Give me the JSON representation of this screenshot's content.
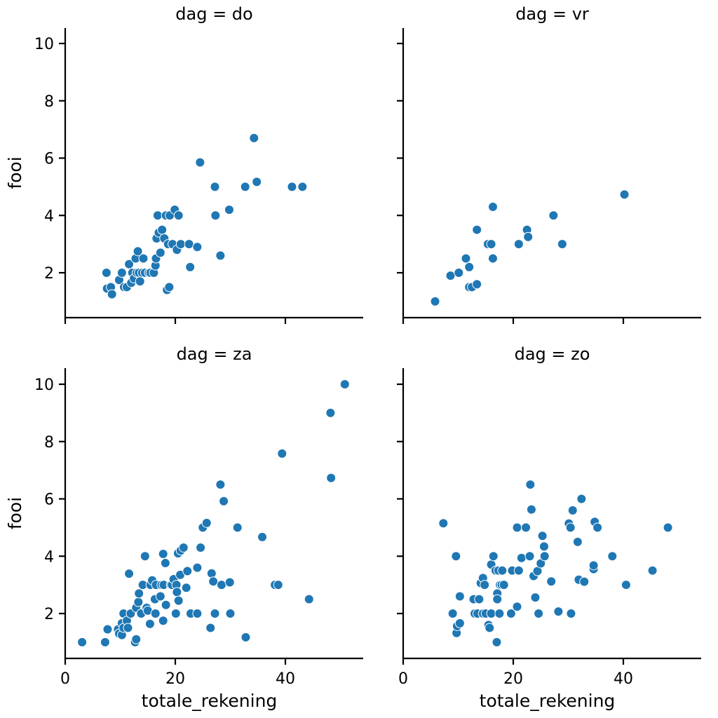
{
  "chart_data": {
    "type": "scatter",
    "facet_variable": "dag",
    "xlabel": "totale_rekening",
    "ylabel": "fooi",
    "xlim": [
      0,
      54
    ],
    "ylim": [
      0.4,
      10.6
    ],
    "xticks": [
      0,
      20,
      40
    ],
    "yticks": [
      2,
      4,
      6,
      8,
      10
    ],
    "point_color": "#1f77b4",
    "panels": [
      {
        "title": "dag = do",
        "points": [
          [
            7.5,
            2.0
          ],
          [
            7.6,
            1.45
          ],
          [
            8.3,
            1.5
          ],
          [
            8.5,
            1.25
          ],
          [
            9.8,
            1.75
          ],
          [
            10.3,
            2.0
          ],
          [
            10.7,
            1.5
          ],
          [
            11.2,
            1.5
          ],
          [
            11.6,
            2.3
          ],
          [
            12.0,
            1.65
          ],
          [
            12.2,
            2.0
          ],
          [
            12.5,
            1.8
          ],
          [
            12.8,
            2.5
          ],
          [
            13.0,
            2.0
          ],
          [
            13.2,
            2.75
          ],
          [
            13.4,
            2.0
          ],
          [
            13.6,
            1.7
          ],
          [
            14.0,
            2.0
          ],
          [
            14.2,
            2.5
          ],
          [
            14.5,
            2.0
          ],
          [
            15.2,
            2.0
          ],
          [
            15.5,
            2.0
          ],
          [
            16.1,
            2.0
          ],
          [
            16.4,
            2.25
          ],
          [
            16.5,
            2.5
          ],
          [
            16.6,
            3.2
          ],
          [
            16.8,
            4.0
          ],
          [
            17.0,
            3.4
          ],
          [
            17.3,
            2.7
          ],
          [
            17.6,
            3.5
          ],
          [
            18.0,
            3.2
          ],
          [
            18.3,
            4.0
          ],
          [
            18.5,
            1.4
          ],
          [
            18.7,
            3.0
          ],
          [
            18.9,
            1.5
          ],
          [
            19.0,
            4.0
          ],
          [
            19.5,
            3.0
          ],
          [
            19.9,
            4.2
          ],
          [
            20.3,
            2.8
          ],
          [
            20.6,
            4.0
          ],
          [
            21.0,
            3.0
          ],
          [
            22.5,
            3.0
          ],
          [
            22.7,
            2.2
          ],
          [
            24.0,
            2.9
          ],
          [
            24.5,
            5.85
          ],
          [
            27.2,
            5.0
          ],
          [
            27.3,
            4.0
          ],
          [
            28.2,
            2.6
          ],
          [
            29.8,
            4.2
          ],
          [
            32.7,
            5.0
          ],
          [
            34.3,
            6.7
          ],
          [
            34.8,
            5.17
          ],
          [
            41.2,
            5.0
          ],
          [
            43.1,
            5.0
          ]
        ]
      },
      {
        "title": "dag = vr",
        "points": [
          [
            5.8,
            1.0
          ],
          [
            8.6,
            1.9
          ],
          [
            10.1,
            2.0
          ],
          [
            11.4,
            2.5
          ],
          [
            12.0,
            1.5
          ],
          [
            12.0,
            2.2
          ],
          [
            12.5,
            1.5
          ],
          [
            13.4,
            1.6
          ],
          [
            13.4,
            3.5
          ],
          [
            15.4,
            3.0
          ],
          [
            16.0,
            3.0
          ],
          [
            16.3,
            2.5
          ],
          [
            16.3,
            4.3
          ],
          [
            21.0,
            3.0
          ],
          [
            22.5,
            3.5
          ],
          [
            22.7,
            3.25
          ],
          [
            27.3,
            4.0
          ],
          [
            28.9,
            3.0
          ],
          [
            40.2,
            4.73
          ]
        ]
      },
      {
        "title": "dag = za",
        "points": [
          [
            3.07,
            1.0
          ],
          [
            7.25,
            1.0
          ],
          [
            7.7,
            1.45
          ],
          [
            9.6,
            1.45
          ],
          [
            9.8,
            1.3
          ],
          [
            10.3,
            1.25
          ],
          [
            10.3,
            1.66
          ],
          [
            10.6,
            2.0
          ],
          [
            10.6,
            1.5
          ],
          [
            11.2,
            1.75
          ],
          [
            11.4,
            1.5
          ],
          [
            11.6,
            3.39
          ],
          [
            11.9,
            2.0
          ],
          [
            12.7,
            1.0
          ],
          [
            12.9,
            1.1
          ],
          [
            12.9,
            2.2
          ],
          [
            13.3,
            2.4
          ],
          [
            13.4,
            2.7
          ],
          [
            13.8,
            2.0
          ],
          [
            14.1,
            3.0
          ],
          [
            14.5,
            4.0
          ],
          [
            14.8,
            2.2
          ],
          [
            15.0,
            2.1
          ],
          [
            15.4,
            1.64
          ],
          [
            15.5,
            3.0
          ],
          [
            15.8,
            3.16
          ],
          [
            16.3,
            2.5
          ],
          [
            16.4,
            2.0
          ],
          [
            16.5,
            3.0
          ],
          [
            17.3,
            2.6
          ],
          [
            17.5,
            3.0
          ],
          [
            17.8,
            1.75
          ],
          [
            17.8,
            4.08
          ],
          [
            17.9,
            3.0
          ],
          [
            18.2,
            3.76
          ],
          [
            18.3,
            2.3
          ],
          [
            19.2,
            3.0
          ],
          [
            19.4,
            3.0
          ],
          [
            19.7,
            3.2
          ],
          [
            20.1,
            2.0
          ],
          [
            20.2,
            3.0
          ],
          [
            20.3,
            2.75
          ],
          [
            20.5,
            4.1
          ],
          [
            20.6,
            2.45
          ],
          [
            20.9,
            3.35
          ],
          [
            21.0,
            4.2
          ],
          [
            21.5,
            4.3
          ],
          [
            22.0,
            2.9
          ],
          [
            22.2,
            3.48
          ],
          [
            22.8,
            2.0
          ],
          [
            24.0,
            3.6
          ],
          [
            24.0,
            2.0
          ],
          [
            24.6,
            4.3
          ],
          [
            25.0,
            5.0
          ],
          [
            25.7,
            5.16
          ],
          [
            26.4,
            1.5
          ],
          [
            26.6,
            3.4
          ],
          [
            26.9,
            3.12
          ],
          [
            27.2,
            2.0
          ],
          [
            28.2,
            6.5
          ],
          [
            28.4,
            3.0
          ],
          [
            28.8,
            5.92
          ],
          [
            29.9,
            3.09
          ],
          [
            30.0,
            2.0
          ],
          [
            31.3,
            5.0
          ],
          [
            32.8,
            1.17
          ],
          [
            35.8,
            4.67
          ],
          [
            38.1,
            3.0
          ],
          [
            38.7,
            3.0
          ],
          [
            39.4,
            7.58
          ],
          [
            44.3,
            2.5
          ],
          [
            48.2,
            9.0
          ],
          [
            48.3,
            6.73
          ],
          [
            50.8,
            10.0
          ]
        ]
      },
      {
        "title": "dag = zo",
        "points": [
          [
            7.3,
            5.15
          ],
          [
            9.0,
            2.0
          ],
          [
            9.6,
            4.0
          ],
          [
            9.7,
            1.32
          ],
          [
            9.8,
            1.56
          ],
          [
            10.3,
            1.66
          ],
          [
            10.3,
            2.6
          ],
          [
            12.8,
            2.5
          ],
          [
            13.0,
            2.0
          ],
          [
            13.5,
            2.0
          ],
          [
            13.8,
            2.5
          ],
          [
            14.1,
            3.06
          ],
          [
            14.5,
            2.0
          ],
          [
            14.5,
            3.24
          ],
          [
            14.8,
            3.0
          ],
          [
            15.0,
            2.0
          ],
          [
            15.5,
            1.6
          ],
          [
            15.7,
            1.5
          ],
          [
            16.0,
            2.0
          ],
          [
            16.0,
            3.71
          ],
          [
            16.4,
            4.0
          ],
          [
            16.8,
            3.5
          ],
          [
            17.0,
            1.0
          ],
          [
            17.1,
            2.7
          ],
          [
            17.1,
            2.5
          ],
          [
            17.3,
            3.5
          ],
          [
            17.5,
            2.0
          ],
          [
            17.6,
            3.0
          ],
          [
            17.9,
            3.0
          ],
          [
            18.0,
            3.5
          ],
          [
            18.3,
            3.0
          ],
          [
            19.6,
            2.0
          ],
          [
            19.8,
            3.5
          ],
          [
            20.7,
            5.0
          ],
          [
            20.7,
            2.24
          ],
          [
            21.0,
            3.5
          ],
          [
            21.5,
            3.94
          ],
          [
            22.3,
            5.0
          ],
          [
            23.0,
            4.0
          ],
          [
            23.1,
            6.5
          ],
          [
            23.3,
            5.63
          ],
          [
            23.7,
            3.31
          ],
          [
            24.0,
            2.56
          ],
          [
            24.4,
            3.48
          ],
          [
            24.6,
            2.0
          ],
          [
            25.0,
            3.75
          ],
          [
            25.3,
            4.71
          ],
          [
            25.6,
            4.34
          ],
          [
            25.7,
            4.0
          ],
          [
            26.9,
            3.12
          ],
          [
            28.2,
            2.07
          ],
          [
            30.1,
            5.14
          ],
          [
            30.4,
            5.0
          ],
          [
            30.5,
            2.0
          ],
          [
            30.8,
            5.6
          ],
          [
            31.7,
            4.5
          ],
          [
            31.9,
            3.18
          ],
          [
            32.4,
            6.0
          ],
          [
            32.9,
            3.11
          ],
          [
            34.6,
            3.55
          ],
          [
            34.6,
            3.68
          ],
          [
            34.8,
            5.2
          ],
          [
            35.3,
            5.0
          ],
          [
            38.0,
            4.0
          ],
          [
            40.5,
            3.0
          ],
          [
            45.3,
            3.5
          ],
          [
            48.1,
            5.0
          ]
        ]
      }
    ]
  }
}
